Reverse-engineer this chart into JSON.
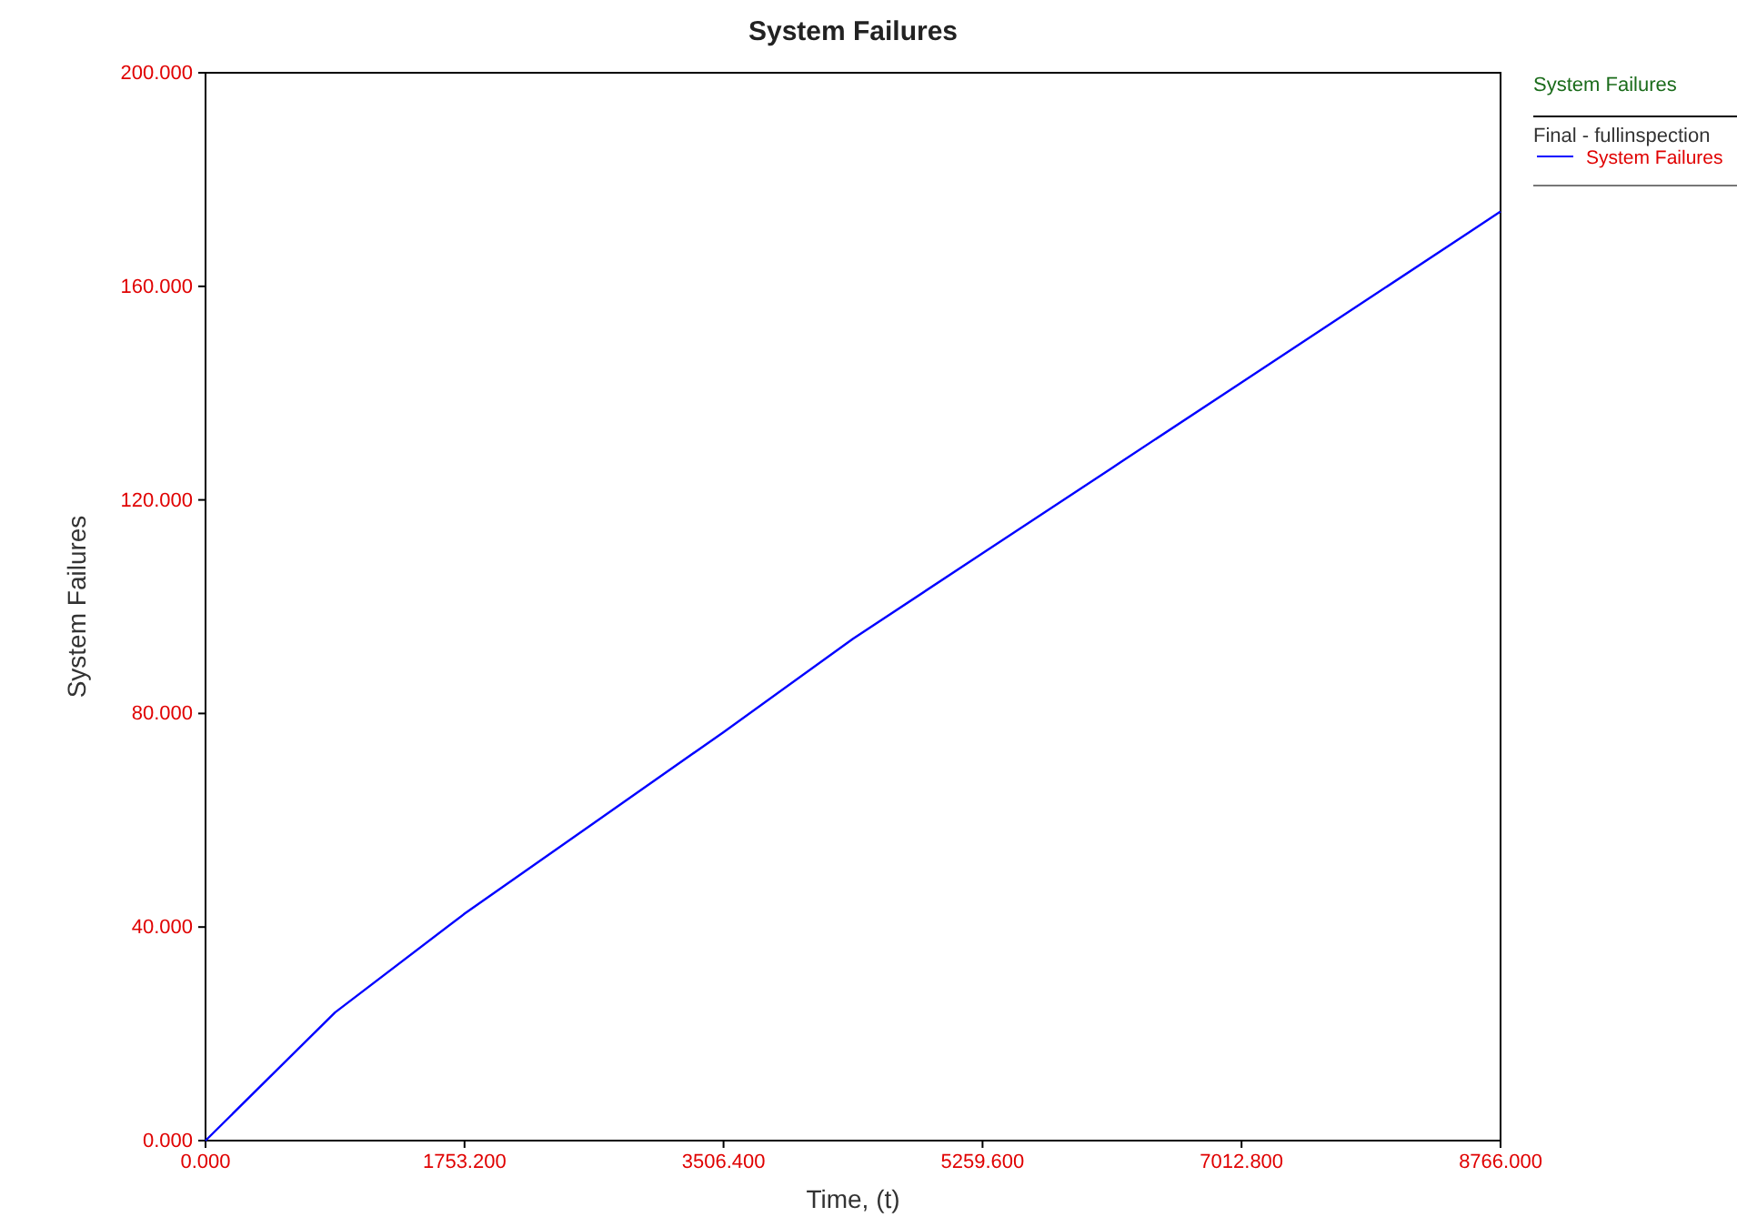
{
  "chart_data": {
    "type": "line",
    "title": "System Failures",
    "xlabel": "Time, (t)",
    "ylabel": "System Failures",
    "legend_title": "System Failures",
    "annotations": [
      "Final - fullinspection"
    ],
    "x": [
      0,
      876.6,
      1753.2,
      2629.8,
      3506.4,
      4383,
      5259.6,
      6136.2,
      7012.8,
      7889.4,
      8766
    ],
    "series": [
      {
        "name": "System Failures",
        "color": "#0000ff",
        "values": [
          0,
          24,
          42.5,
          59.5,
          76.5,
          94,
          110,
          126,
          142,
          158,
          174
        ]
      }
    ],
    "xlim": [
      0,
      8766
    ],
    "ylim": [
      0,
      200
    ],
    "xticks": [
      {
        "value": 0,
        "label": "0.000"
      },
      {
        "value": 1753.2,
        "label": "1753.200"
      },
      {
        "value": 3506.4,
        "label": "3506.400"
      },
      {
        "value": 5259.6,
        "label": "5259.600"
      },
      {
        "value": 7012.8,
        "label": "7012.800"
      },
      {
        "value": 8766,
        "label": "8766.000"
      }
    ],
    "yticks": [
      {
        "value": 0,
        "label": "0.000"
      },
      {
        "value": 40,
        "label": "40.000"
      },
      {
        "value": 80,
        "label": "80.000"
      },
      {
        "value": 120,
        "label": "120.000"
      },
      {
        "value": 160,
        "label": "160.000"
      },
      {
        "value": 200,
        "label": "200.000"
      }
    ],
    "grid": false,
    "legend": "right",
    "marker": "none",
    "line_style": "solid"
  }
}
